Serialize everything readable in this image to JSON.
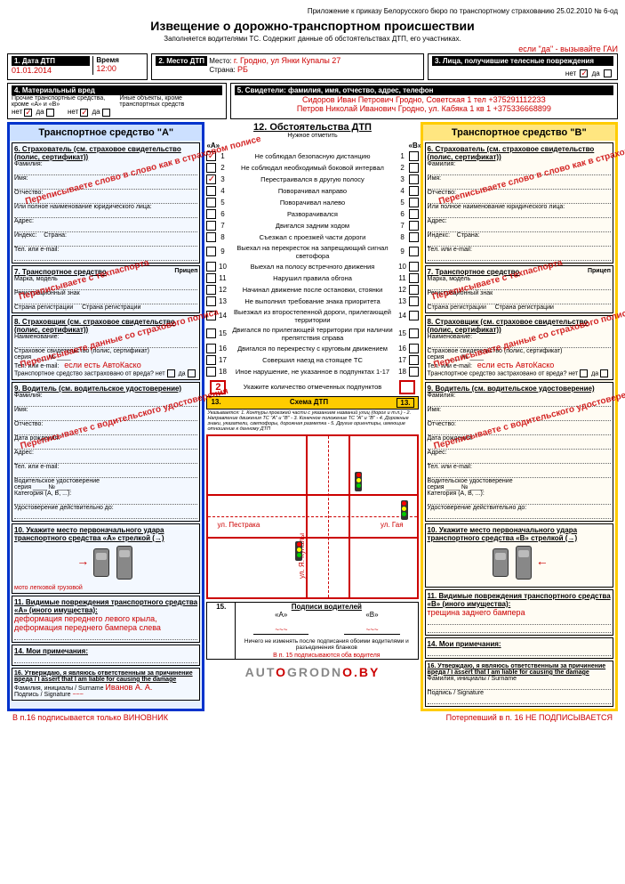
{
  "header_note": "Приложение к приказу Белорусского бюро по транспортному страхованию 25.02.2010 № 6-од",
  "title": "Извещение о дорожно-транспортном происшествии",
  "subtitle": "Заполняется водителями ТС. Содержит данные об обстоятельствах ДТП, его участниках.",
  "call_gai": "если \"да\" - вызывайте ГАИ",
  "b1": {
    "label": "1. Дата ДТП",
    "date": "01.01.2014",
    "time_label": "Время",
    "time": "12:00"
  },
  "b2": {
    "label": "2. Место ДТП",
    "place_label": "Место:",
    "place": "г. Гродно, ул Янки Купалы 27",
    "country_label": "Страна:",
    "country": "РБ"
  },
  "b3": {
    "label": "3. Лица, получившие телесные повреждения",
    "no": "нет",
    "yes": "да"
  },
  "b4": {
    "label": "4. Материальный вред",
    "line1": "Прочие транспортные средства, кроме «А» и «В»",
    "line2": "Иные объекты, кроме транспортных средств",
    "no": "нет",
    "yes": "да"
  },
  "b5": {
    "label": "5. Свидетели: фамилия, имя, отчество, адрес, телефон",
    "w1": "Сидоров Иван Петрович Гродно, Советская 1 тел +37529111223З",
    "w2": "Петров Николай Иванович Гродно, ул. Кабяка 1 кв 1 +375336668899"
  },
  "vehA": "Транспортное средство \"А\"",
  "vehB": "Транспортное средство \"В\"",
  "s6": {
    "t": "6. Страхователь (см. страховое свидетельство (полис, сертификат))",
    "f": "Фамилия:",
    "n": "Имя:",
    "o": "Отчество:",
    "full": "Или полное наименование юридического лица:",
    "addr": "Адрес:",
    "idx": "Индекс:",
    "ctry": "Страна:",
    "tel": "Тел. или e-mail:"
  },
  "s7": {
    "t": "7. Транспортное средство",
    "trailer": "Прицеп",
    "make": "Марка, модель",
    "reg": "Регистрационный знак",
    "regc": "Страна регистрации"
  },
  "s8": {
    "t": "8. Страховщик (см. страховое свидетельство (полис, сертификат))",
    "name": "Наименование:",
    "cert": "Страховое свидетельство (полис, сертификат)",
    "ser": "серия",
    "no": "№",
    "tel": "Тел. или e-mail:",
    "ins": "Транспортное средство застраховано от вреда?",
    "y": "да",
    "n": "нет",
    "kasko": "если есть АвтоКаско"
  },
  "s9": {
    "t": "9. Водитель (см. водительское удостоверение)",
    "f": "Фамилия:",
    "n": "Имя:",
    "o": "Отчество:",
    "dob": "Дата рождения:",
    "addr": "Адрес:",
    "tel": "Тел. или e-mail:",
    "lic": "Водительское удостоверение",
    "ser": "серия",
    "no": "№",
    "cat": "Категория (A, B, ...):",
    "valid": "Удостоверение действительно до:"
  },
  "s10": {
    "tA": "10. Укажите место первоначального удара транспортного средства «А» стрелкой (→)",
    "tB": "10. Укажите место первоначального удара транспортного средства «В» стрелкой (→)",
    "moto": "мото",
    "car": "легковой",
    "truck": "грузовой"
  },
  "s11": {
    "tA": "11. Видимые повреждения транспортного средства «А» (иного имущества):",
    "tB": "11. Видимые повреждения транспортного средства «В» (иного имущества):",
    "dmgA": "деформация переднего левого крыла, деформация переднего бампера слева",
    "dmgB": "трещина заднего бампера"
  },
  "s14": {
    "t": "14. Мои примечания:"
  },
  "s15": {
    "t": "15.",
    "title": "Подписи водителей",
    "a": "«А»",
    "b": "«В»",
    "note1": "Ничего не изменять после подписания обоими водителями и разъединения бланков",
    "note2": "В п. 15 подписываются оба водителя"
  },
  "s16": {
    "t": "16. Утверждаю, я являюсь ответственным за причинение вреда / I assert that I am liable for causing the damage",
    "surname": "Фамилия, инициалы / Surname",
    "sig": "Подпись / Signature",
    "name": "Иванов А. А."
  },
  "circ": {
    "title": "12. Обстоятельства ДТП",
    "sub": "Нужное отметить",
    "hA": "«А»",
    "hB": "«В»",
    "items": [
      "Не соблюдал безопасную дистанцию",
      "Не соблюдал необходимый боковой интервал",
      "Перестраивался в другую полосу",
      "Поворачивал направо",
      "Поворачивал налево",
      "Разворачивался",
      "Двигался задним ходом",
      "Съезжал с проезжей части дороги",
      "Выехал на перекресток на запрещающий сигнал светофора",
      "Выехал на полосу встречного движения",
      "Нарушил правила обгона",
      "Начинал движение после остановки, стоянки",
      "Не выполнил требование знака приоритета",
      "Выезжал из второстепенной дороги, прилегающей территории",
      "Двигался по прилегающей территории при наличии препятствия справа",
      "Двигался по перекрестку с круговым движением",
      "Совершил наезд на стоящее ТС",
      "Иное нарушение, не указанное в подпунктах 1-17"
    ],
    "checkedA": [
      1,
      3
    ],
    "countA": "2",
    "count_label": "Укажите количество отмеченных подпунктов"
  },
  "s13": {
    "num": "13.",
    "title": "Схема ДТП",
    "box": "13.",
    "legend": "Указывается: 1. Контуры проезжей части с указанием названий улиц (дорог и т.п.) - 2. Направление движения ТС \"А\" и \"В\" - 3. Конечное положение ТС \"А\" и \"В\" - 4. Дорожные знаки, указатели, светофоры, дорожная разметка - 5. Другие ориентиры, имеющие отношение к данному ДТП",
    "st1": "ул. Пестрака",
    "st2": "ул. Я. Купалы",
    "st3": "ул. Гая"
  },
  "annots": {
    "a6": "Переписываете слово в слово как в страховом полисе",
    "a7": "Переписываете с техпаспорта",
    "a8": "Переписываете данные со страхового полиса",
    "a9": "Переписываете с водительского удостоверения"
  },
  "bottom": {
    "left": "В п.16 подписывается только ВИНОВНИК",
    "right": "Потерпевший в п. 16 НЕ ПОДПИСЫВАЕТСЯ"
  },
  "logo": {
    "p1": "AUT",
    "p2": "O",
    "p3": "GRODN",
    "p4": "O",
    "p5": ".BY"
  }
}
